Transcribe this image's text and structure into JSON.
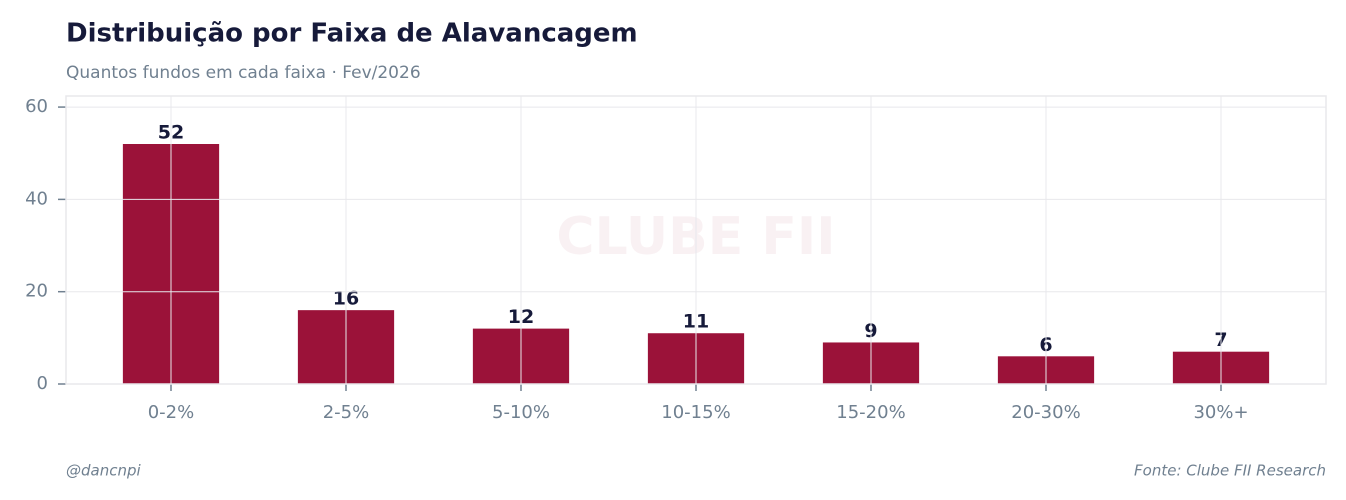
{
  "chart_data": {
    "type": "bar",
    "title": "Distribuição por Faixa de Alavancagem",
    "subtitle": "Quantos fundos em cada faixa · Fev/2026",
    "watermark": "CLUBE FII",
    "categories": [
      "0-2%",
      "2-5%",
      "5-10%",
      "10-15%",
      "15-20%",
      "20-30%",
      "30%+"
    ],
    "values": [
      52,
      16,
      12,
      11,
      9,
      6,
      7
    ],
    "color": "#9b1239",
    "ylim": [
      0,
      62.4
    ],
    "yticks": [
      0,
      20,
      40,
      60
    ],
    "grid": true,
    "footer_left": "@dancnpi",
    "footer_right": "Fonte: Clube FII Research"
  }
}
